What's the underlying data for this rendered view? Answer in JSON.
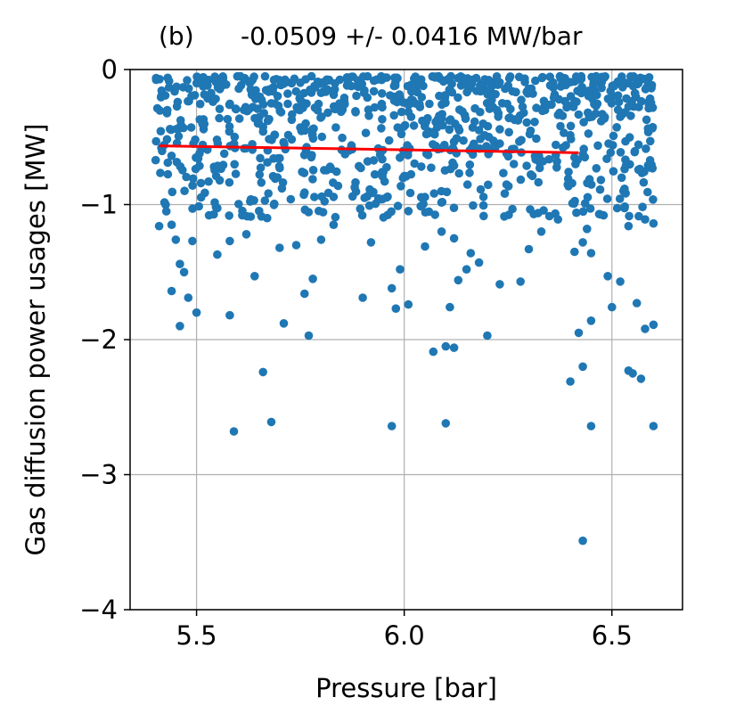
{
  "chart_data": {
    "type": "scatter",
    "panel_label": "(b)",
    "title": "-0.0509 +/- 0.0416  MW/bar",
    "xlabel": "Pressure [bar]",
    "ylabel": "Gas diffusion power usages [MW]",
    "xlim": [
      5.34,
      6.67
    ],
    "ylim": [
      -4,
      0
    ],
    "xticks": [
      5.5,
      6.0,
      6.5
    ],
    "xtick_labels": [
      "5.5",
      "6.0",
      "6.5"
    ],
    "yticks": [
      0,
      -1,
      -2,
      -3,
      -4
    ],
    "ytick_labels": [
      "0",
      "−1",
      "−2",
      "−3",
      "−4"
    ],
    "grid": true,
    "marker_color": "#1f77b4",
    "fit_color": "#ff0000",
    "fit_line": {
      "x": [
        5.41,
        6.42
      ],
      "y": [
        -0.565,
        -0.616
      ]
    },
    "generated_points": {
      "count": 900,
      "x_range": [
        5.4,
        6.6
      ],
      "y_range": [
        -1.1,
        -0.05
      ]
    },
    "series": [
      {
        "values": [
          [
            5.46,
            -1.9
          ],
          [
            5.5,
            -1.8
          ],
          [
            5.58,
            -1.82
          ],
          [
            5.59,
            -2.68
          ],
          [
            5.66,
            -2.24
          ],
          [
            5.68,
            -2.61
          ],
          [
            5.71,
            -1.88
          ],
          [
            5.77,
            -1.97
          ],
          [
            5.9,
            -1.69
          ],
          [
            5.97,
            -1.62
          ],
          [
            5.98,
            -1.77
          ],
          [
            5.97,
            -2.64
          ],
          [
            6.01,
            -1.74
          ],
          [
            6.07,
            -2.09
          ],
          [
            6.1,
            -2.05
          ],
          [
            6.1,
            -2.62
          ],
          [
            6.12,
            -2.06
          ],
          [
            6.2,
            -1.97
          ],
          [
            6.4,
            -2.31
          ],
          [
            6.43,
            -2.2
          ],
          [
            6.43,
            -3.49
          ],
          [
            6.45,
            -2.64
          ],
          [
            6.42,
            -1.95
          ],
          [
            6.45,
            -1.86
          ],
          [
            6.54,
            -2.23
          ],
          [
            6.55,
            -2.25
          ],
          [
            6.57,
            -2.29
          ],
          [
            6.58,
            -1.92
          ],
          [
            6.6,
            -1.89
          ],
          [
            6.6,
            -2.64
          ],
          [
            6.56,
            -1.73
          ],
          [
            6.5,
            -1.76
          ],
          [
            6.49,
            -1.53
          ],
          [
            6.45,
            -1.36
          ],
          [
            6.41,
            -1.35
          ],
          [
            6.43,
            -1.28
          ],
          [
            5.41,
            -1.16
          ],
          [
            5.44,
            -1.15
          ],
          [
            5.45,
            -1.26
          ],
          [
            5.46,
            -1.44
          ],
          [
            5.47,
            -1.5
          ],
          [
            5.49,
            -1.27
          ],
          [
            5.44,
            -1.64
          ],
          [
            5.48,
            -1.69
          ],
          [
            5.53,
            -1.08
          ],
          [
            5.55,
            -1.37
          ],
          [
            5.58,
            -1.27
          ],
          [
            5.61,
            -1.08
          ],
          [
            5.64,
            -1.53
          ],
          [
            5.67,
            -1.1
          ],
          [
            5.7,
            -1.32
          ],
          [
            5.74,
            -1.3
          ],
          [
            5.76,
            -1.66
          ],
          [
            5.78,
            -1.55
          ],
          [
            5.8,
            -1.26
          ],
          [
            5.83,
            -1.15
          ],
          [
            5.92,
            -1.28
          ],
          [
            5.99,
            -1.48
          ],
          [
            6.05,
            -1.31
          ],
          [
            6.09,
            -1.2
          ],
          [
            6.11,
            -1.76
          ],
          [
            6.12,
            -1.25
          ],
          [
            6.15,
            -1.48
          ],
          [
            6.18,
            -1.43
          ],
          [
            6.23,
            -1.59
          ],
          [
            6.28,
            -1.57
          ],
          [
            6.3,
            -1.33
          ],
          [
            6.33,
            -1.2
          ],
          [
            6.37,
            -1.11
          ],
          [
            6.44,
            -1.18
          ],
          [
            6.48,
            -1.08
          ],
          [
            6.52,
            -1.57
          ],
          [
            6.54,
            -1.16
          ],
          [
            6.58,
            -1.11
          ],
          [
            6.6,
            -1.14
          ],
          [
            6.13,
            -1.56
          ],
          [
            6.16,
            -1.36
          ],
          [
            5.62,
            -1.22
          ]
        ]
      }
    ]
  }
}
